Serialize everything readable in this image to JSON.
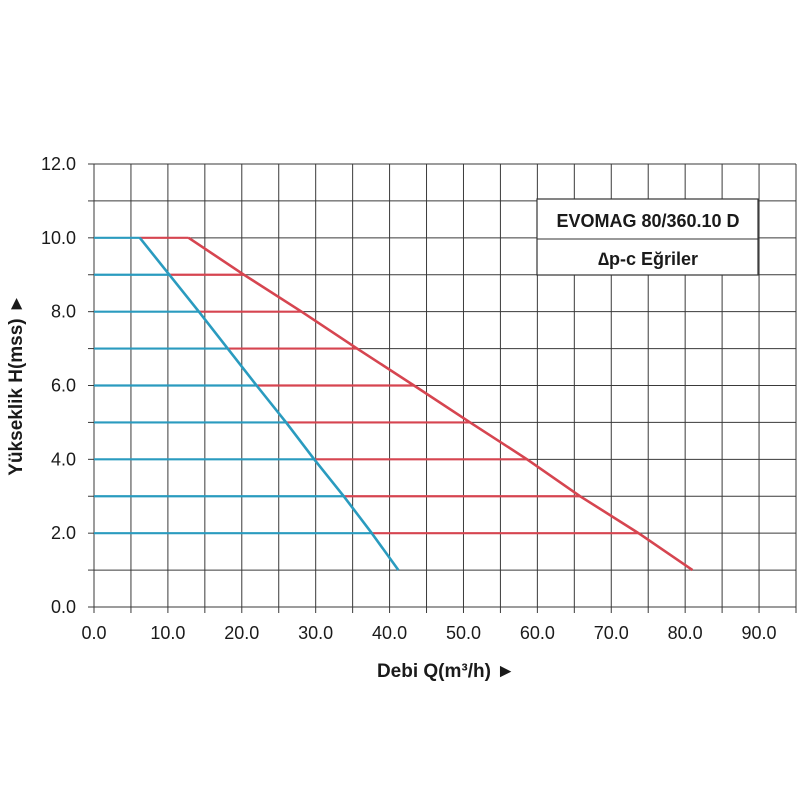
{
  "chart_data": {
    "type": "line",
    "xlabel": "Debi Q(m³/h) ►",
    "ylabel": "Yükseklik H(mss) ►",
    "xlim": [
      0,
      95
    ],
    "ylim": [
      0,
      12
    ],
    "x_major_step": 10,
    "x_grid_step": 5,
    "y_major_step": 2,
    "y_grid_step": 1,
    "grid": true,
    "x_ticks": [
      "0.0",
      "10.0",
      "20.0",
      "30.0",
      "40.0",
      "50.0",
      "60.0",
      "70.0",
      "80.0",
      "90.0"
    ],
    "y_ticks": [
      "0.0",
      "2.0",
      "4.0",
      "6.0",
      "8.0",
      "10.0",
      "12.0"
    ],
    "legend_box": {
      "line1": "EVOMAG 80/360.10 D",
      "line2": "∆p-c Eğriler"
    },
    "series": [
      {
        "color": "#d64550",
        "role": "max-curve",
        "x": [
          12.8,
          20.3,
          28.1,
          35.6,
          43.3,
          50.9,
          58.6,
          65.8,
          73.7,
          81.0
        ],
        "y": [
          10,
          9,
          8,
          7,
          6,
          5,
          4,
          3,
          2,
          1
        ]
      },
      {
        "color": "#2a9bbf",
        "role": "min-curve",
        "x": [
          6.2,
          10.2,
          14.2,
          18.1,
          22.0,
          26.0,
          29.8,
          33.8,
          37.6,
          41.2
        ],
        "y": [
          10,
          9,
          8,
          7,
          6,
          5,
          4,
          3,
          2,
          1
        ]
      }
    ],
    "levels": [
      {
        "y": 10,
        "x_blue_end": 6.2,
        "x_red_end": 12.8
      },
      {
        "y": 9,
        "x_blue_end": 10.2,
        "x_red_end": 20.3
      },
      {
        "y": 8,
        "x_blue_end": 14.2,
        "x_red_end": 28.1
      },
      {
        "y": 7,
        "x_blue_end": 18.1,
        "x_red_end": 35.6
      },
      {
        "y": 6,
        "x_blue_end": 22.0,
        "x_red_end": 43.3
      },
      {
        "y": 5,
        "x_blue_end": 26.0,
        "x_red_end": 50.9
      },
      {
        "y": 4,
        "x_blue_end": 29.8,
        "x_red_end": 58.6
      },
      {
        "y": 3,
        "x_blue_end": 33.8,
        "x_red_end": 65.8
      },
      {
        "y": 2,
        "x_blue_end": 37.6,
        "x_red_end": 73.7
      }
    ]
  }
}
